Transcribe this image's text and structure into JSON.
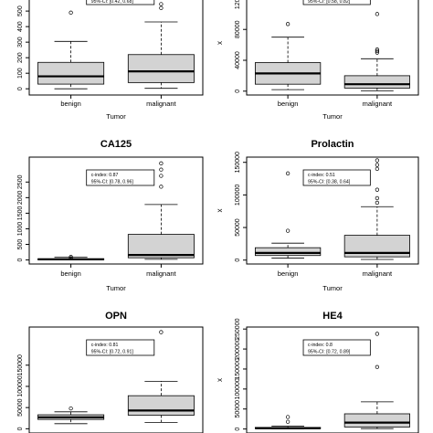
{
  "figure": {
    "background": "#ffffff",
    "box_fill": "#d3d3d3",
    "stroke": "#000000"
  },
  "chart_data": [
    {
      "type": "boxplot",
      "title": "",
      "xlabel": "Tumor",
      "ylabel": "",
      "categories": [
        "benign",
        "malignant"
      ],
      "ylim": [
        -40,
        630
      ],
      "yticks": [
        0,
        100,
        200,
        300,
        400,
        500
      ],
      "annotation": [
        "",
        "95%-CI: [0.42, 0.68]"
      ],
      "boxes": [
        {
          "min": 0,
          "q1": 30,
          "median": 80,
          "q3": 170,
          "max": 305,
          "outliers": [
            490
          ]
        },
        {
          "min": 3,
          "q1": 40,
          "median": 112,
          "q3": 220,
          "max": 430,
          "outliers": [
            520,
            545
          ]
        }
      ]
    },
    {
      "type": "boxplot",
      "title": "",
      "xlabel": "Tumor",
      "ylabel": "x",
      "categories": [
        "benign",
        "malignant"
      ],
      "ylim": [
        -5000,
        130000
      ],
      "yticks": [
        0,
        40000,
        80000,
        120000
      ],
      "annotation": [
        "",
        "95%-CI: [0.58, 0.82]"
      ],
      "boxes": [
        {
          "min": 2000,
          "q1": 9000,
          "median": 23000,
          "q3": 37000,
          "max": 70000,
          "outliers": [
            87000
          ]
        },
        {
          "min": 500,
          "q1": 4000,
          "median": 9000,
          "q3": 20000,
          "max": 42000,
          "outliers": [
            50000,
            52000,
            54000,
            100000
          ]
        }
      ]
    },
    {
      "type": "boxplot",
      "title": "CA125",
      "xlabel": "Tumor",
      "ylabel": "",
      "categories": [
        "benign",
        "malignant"
      ],
      "ylim": [
        -130,
        3300
      ],
      "yticks": [
        0,
        500,
        1000,
        1500,
        2000,
        2500
      ],
      "annotation": [
        "c-index: 0.87",
        "95%-CI: [0.78, 0.96]"
      ],
      "boxes": [
        {
          "min": 0,
          "q1": 8,
          "median": 18,
          "q3": 40,
          "max": 85,
          "outliers": [
            100,
            55
          ]
        },
        {
          "min": 20,
          "q1": 70,
          "median": 160,
          "q3": 820,
          "max": 1780,
          "outliers": [
            2350,
            2700,
            2900,
            3100
          ]
        }
      ]
    },
    {
      "type": "boxplot",
      "title": "Prolactin",
      "xlabel": "Tumor",
      "ylabel": "x",
      "categories": [
        "benign",
        "malignant"
      ],
      "ylim": [
        -6000,
        158000
      ],
      "yticks": [
        0,
        50000,
        100000,
        150000
      ],
      "annotation": [
        "c-index: 0.51",
        "95%-CI: [0.38, 0.64]"
      ],
      "boxes": [
        {
          "min": 3000,
          "q1": 7000,
          "median": 11000,
          "q3": 19000,
          "max": 26000,
          "outliers": [
            45000,
            133000
          ]
        },
        {
          "min": 1000,
          "q1": 5000,
          "median": 11000,
          "q3": 38000,
          "max": 82000,
          "outliers": [
            88000,
            95000,
            108000,
            140000,
            146000,
            153000
          ]
        }
      ]
    },
    {
      "type": "boxplot",
      "title": "OPN",
      "xlabel": "",
      "ylabel": "",
      "categories": [],
      "ylim": [
        -10000,
        240000
      ],
      "yticks": [
        0,
        50000,
        100000,
        150000
      ],
      "annotation": [
        "c-index: 0.81",
        "95%-CI: [0.72, 0.91]"
      ],
      "boxes": [
        {
          "min": 12000,
          "q1": 22000,
          "median": 27000,
          "q3": 33000,
          "max": 40000,
          "outliers": [
            48000
          ]
        },
        {
          "min": 15000,
          "q1": 32000,
          "median": 43000,
          "q3": 78000,
          "max": 112000,
          "outliers": [
            228000
          ]
        }
      ]
    },
    {
      "type": "boxplot",
      "title": "HE4",
      "xlabel": "",
      "ylabel": "x",
      "categories": [],
      "ylim": [
        -10000,
        255000
      ],
      "yticks": [
        0,
        50000,
        100000,
        150000,
        200000,
        250000
      ],
      "annotation": [
        "c-index: 0.8",
        "95%-CI: [0.72, 0.89]"
      ],
      "boxes": [
        {
          "min": 0,
          "q1": 1000,
          "median": 2000,
          "q3": 4000,
          "max": 7000,
          "outliers": [
            18000,
            30000
          ]
        },
        {
          "min": 1000,
          "q1": 5000,
          "median": 16000,
          "q3": 38000,
          "max": 68000,
          "outliers": [
            155000,
            238000
          ]
        }
      ]
    }
  ]
}
